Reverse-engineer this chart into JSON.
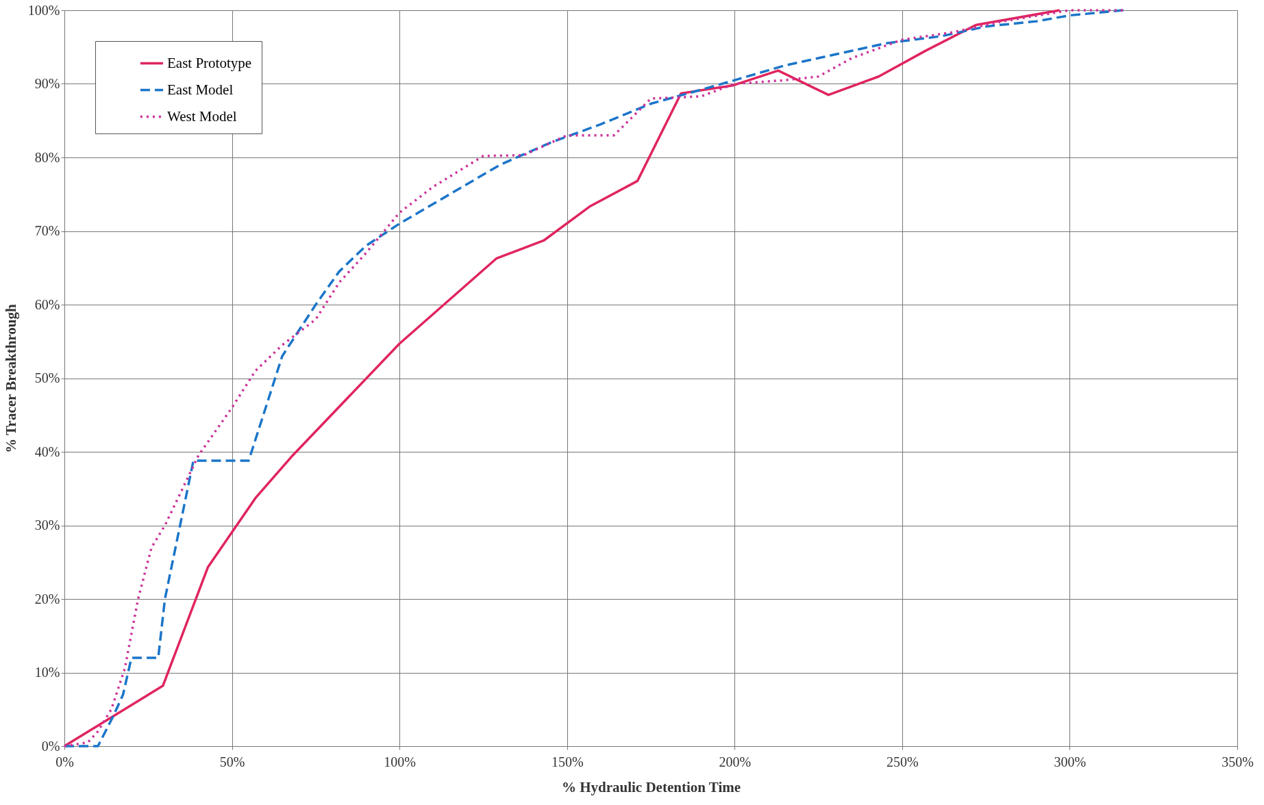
{
  "chart_data": {
    "type": "line",
    "xlabel": "% Hydraulic Detention Time",
    "ylabel": "% Tracer Breakthrough",
    "xlim": [
      0,
      350
    ],
    "ylim": [
      0,
      100
    ],
    "xticks": [
      {
        "value": 0,
        "label": "0%"
      },
      {
        "value": 50,
        "label": "50%"
      },
      {
        "value": 100,
        "label": "100%"
      },
      {
        "value": 150,
        "label": "150%"
      },
      {
        "value": 200,
        "label": "200%"
      },
      {
        "value": 250,
        "label": "250%"
      },
      {
        "value": 300,
        "label": "300%"
      },
      {
        "value": 350,
        "label": "350%"
      }
    ],
    "yticks": [
      {
        "value": 0,
        "label": "0%"
      },
      {
        "value": 10,
        "label": "10%"
      },
      {
        "value": 20,
        "label": "20%"
      },
      {
        "value": 30,
        "label": "30%"
      },
      {
        "value": 40,
        "label": "40%"
      },
      {
        "value": 50,
        "label": "50%"
      },
      {
        "value": 60,
        "label": "60%"
      },
      {
        "value": 70,
        "label": "70%"
      },
      {
        "value": 80,
        "label": "80%"
      },
      {
        "value": 90,
        "label": "90%"
      },
      {
        "value": 100,
        "label": "100%"
      }
    ],
    "grid": true,
    "legend": "top left",
    "series": [
      {
        "name": "East Prototype",
        "color": "#e0245e",
        "line_style": "solid",
        "x": [
          0,
          29.4,
          42.8,
          57,
          67.7,
          100,
          129,
          143,
          157,
          171,
          184,
          199.6,
          213,
          228,
          243,
          257,
          272,
          297
        ],
        "values": [
          0,
          8.2,
          24.3,
          33.7,
          39.3,
          54.7,
          66.3,
          68.7,
          73.4,
          76.8,
          88.7,
          89.8,
          91.8,
          88.5,
          91,
          94.5,
          98,
          100
        ]
      },
      {
        "name": "East Model",
        "color": "#1b75c9",
        "line_style": "dashed",
        "x": [
          0,
          10,
          14.5,
          17.5,
          20,
          28,
          30,
          38.5,
          55,
          65,
          75,
          82,
          90,
          100,
          115,
          130,
          145,
          160,
          175,
          190,
          200,
          215,
          230,
          245,
          262,
          275,
          290,
          300,
          316
        ],
        "values": [
          0,
          0,
          4,
          7,
          12,
          12,
          20,
          38.8,
          38.8,
          53,
          60,
          64.5,
          68,
          71,
          75,
          79,
          82,
          84.5,
          87.3,
          89.2,
          90.5,
          92.5,
          94,
          95.5,
          96.5,
          97.8,
          98.5,
          99.3,
          100
        ]
      },
      {
        "name": "West Model",
        "color": "#cc3399",
        "line_style": "dotted",
        "x": [
          0,
          7,
          10,
          14,
          18,
          22,
          26,
          30,
          40,
          50,
          57,
          65,
          75,
          82,
          90,
          100,
          110,
          125,
          137,
          150,
          164,
          175,
          190,
          200,
          215,
          225,
          235,
          250,
          265,
          280,
          300,
          316
        ],
        "values": [
          0,
          0.5,
          2,
          5,
          10.5,
          20,
          27,
          30,
          39.5,
          46,
          51,
          54.5,
          58,
          63,
          67,
          72.5,
          76,
          80.2,
          80.3,
          83,
          83,
          88,
          88.3,
          90,
          90.5,
          91,
          93.5,
          96,
          97,
          98.5,
          100,
          100
        ]
      }
    ]
  }
}
